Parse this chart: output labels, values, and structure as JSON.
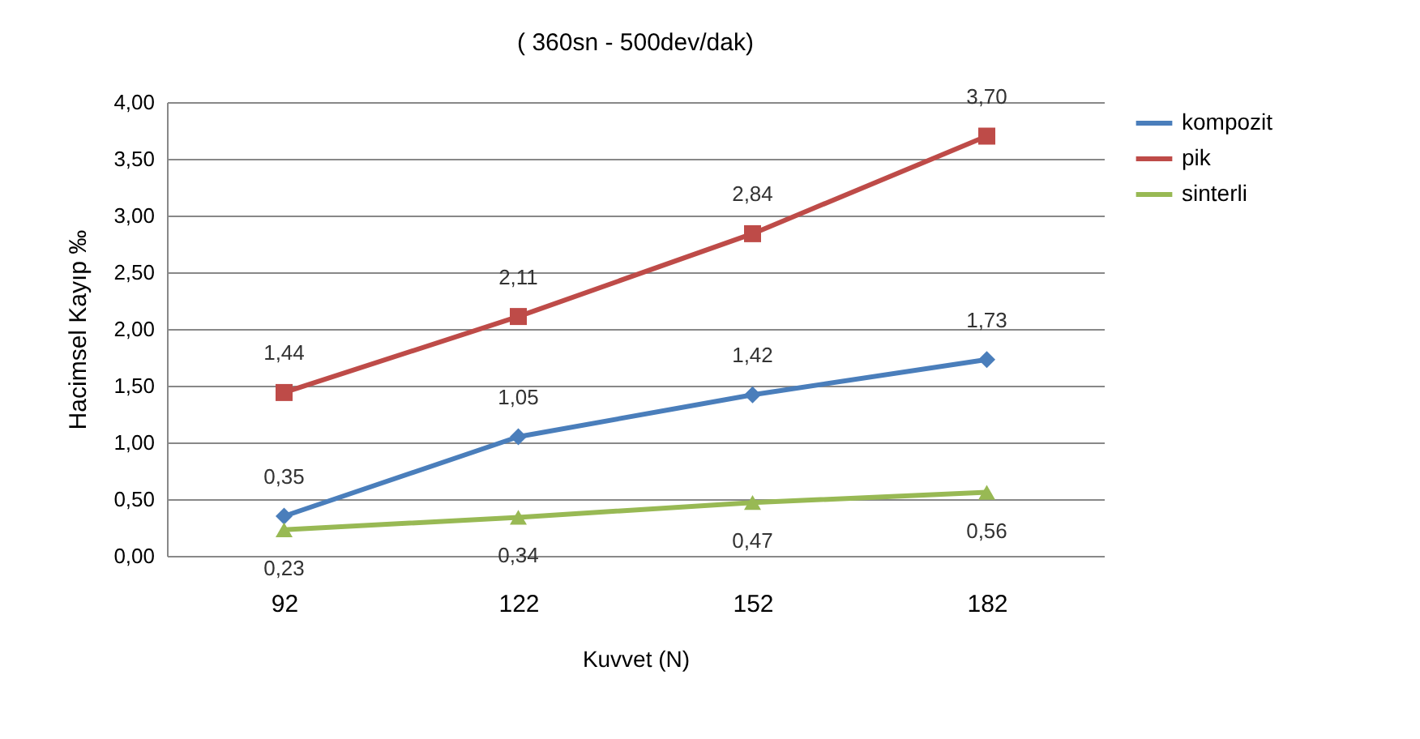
{
  "chart_data": {
    "type": "line",
    "title": "( 360sn - 500dev/dak)",
    "xlabel": "Kuvvet (N)",
    "ylabel": "Hacimsel Kayıp ‰",
    "categories": [
      "92",
      "122",
      "152",
      "182"
    ],
    "ylim": [
      0,
      4
    ],
    "yticks": [
      {
        "value": 0,
        "label": "0,00"
      },
      {
        "value": 0.5,
        "label": "0,50"
      },
      {
        "value": 1,
        "label": "1,00"
      },
      {
        "value": 1.5,
        "label": "1,50"
      },
      {
        "value": 2,
        "label": "2,00"
      },
      {
        "value": 2.5,
        "label": "2,50"
      },
      {
        "value": 3,
        "label": "3,00"
      },
      {
        "value": 3.5,
        "label": "3,50"
      },
      {
        "value": 4,
        "label": "4,00"
      }
    ],
    "grid": "y",
    "legend": "right",
    "series": [
      {
        "name": "kompozit",
        "color": "#4a7ebb",
        "marker": "diamond",
        "values": [
          0.35,
          1.05,
          1.42,
          1.73
        ],
        "value_labels": [
          "0,35",
          "1,05",
          "1,42",
          "1,73"
        ]
      },
      {
        "name": "pik",
        "color": "#be4b48",
        "marker": "square",
        "values": [
          1.44,
          2.11,
          2.84,
          3.7
        ],
        "value_labels": [
          "1,44",
          "2,11",
          "2,84",
          "3,70"
        ]
      },
      {
        "name": "sinterli",
        "color": "#98b954",
        "marker": "triangle",
        "values": [
          0.23,
          0.34,
          0.47,
          0.56
        ],
        "value_labels": [
          "0,23",
          "0,34",
          "0,47",
          "0,56"
        ]
      }
    ]
  }
}
